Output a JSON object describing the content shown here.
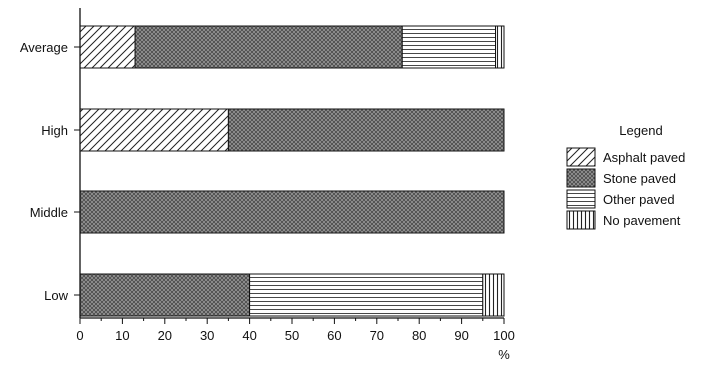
{
  "chart_data": {
    "type": "bar",
    "orientation": "horizontal",
    "stacked": true,
    "categories": [
      "Average",
      "High",
      "Middle",
      "Low"
    ],
    "series": [
      {
        "name": "Asphalt paved",
        "values": [
          13,
          35,
          0,
          0
        ],
        "pattern": "diagonal"
      },
      {
        "name": "Stone paved",
        "values": [
          63,
          65,
          100,
          40
        ],
        "pattern": "crosshatch"
      },
      {
        "name": "Other paved",
        "values": [
          22,
          0,
          0,
          55
        ],
        "pattern": "horizontal"
      },
      {
        "name": "No pavement",
        "values": [
          2,
          0,
          0,
          5
        ],
        "pattern": "vertical"
      }
    ],
    "xlim": [
      0,
      100
    ],
    "xticks": [
      0,
      10,
      20,
      30,
      40,
      50,
      60,
      70,
      80,
      90,
      100
    ],
    "xunit": "%",
    "legend_title": "Legend",
    "legend_position": "right",
    "grid": false
  }
}
